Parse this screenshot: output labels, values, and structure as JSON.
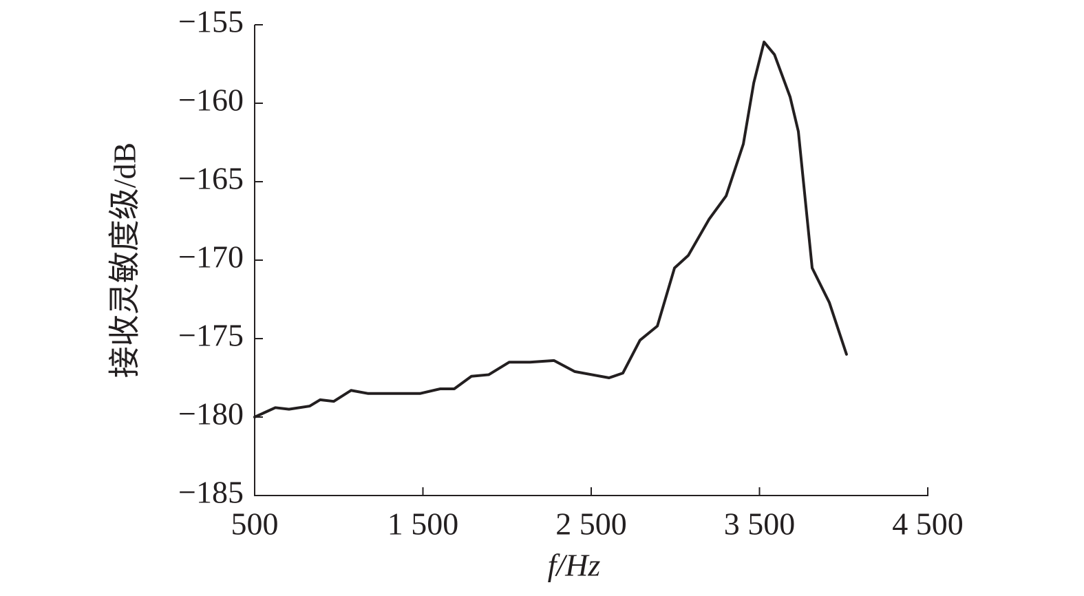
{
  "chart_data": {
    "type": "line",
    "xlabel": "f/Hz",
    "ylabel": "接收灵敏度级/dB",
    "xlim": [
      500,
      4500
    ],
    "ylim": [
      -185,
      -155
    ],
    "xticks": [
      500,
      {
        "value": 1500,
        "label": "1 500"
      },
      {
        "value": 2500,
        "label": "2 500"
      },
      {
        "value": 3500,
        "label": "3 500"
      },
      {
        "value": 4500,
        "label": "4 500"
      }
    ],
    "yticks": [
      {
        "value": -185,
        "label": "−185"
      },
      {
        "value": -180,
        "label": "−180"
      },
      {
        "value": -175,
        "label": "−175"
      },
      {
        "value": -170,
        "label": "−170"
      },
      {
        "value": -165,
        "label": "−165"
      },
      {
        "value": -160,
        "label": "−160"
      },
      {
        "value": -155,
        "label": "−155"
      }
    ],
    "x": [
      500,
      623,
      704,
      827,
      889,
      970,
      1073,
      1175,
      1482,
      1604,
      1686,
      1788,
      1891,
      2013,
      2136,
      2279,
      2402,
      2504,
      2606,
      2688,
      2790,
      2893,
      2995,
      3077,
      3200,
      3302,
      3404,
      3466,
      3527,
      3589,
      3682,
      3731,
      3813,
      3915,
      4017
    ],
    "series": [
      {
        "color": "#231f20",
        "values": [
          -180.0,
          -179.4,
          -179.5,
          -179.3,
          -178.9,
          -179.0,
          -178.3,
          -178.5,
          -178.5,
          -178.2,
          -178.2,
          -177.4,
          -177.3,
          -176.5,
          -176.5,
          -176.4,
          -177.1,
          -177.3,
          -177.5,
          -177.2,
          -175.1,
          -174.2,
          -170.5,
          -169.7,
          -167.4,
          -165.9,
          -162.6,
          -158.7,
          -156.1,
          -156.9,
          -159.6,
          -161.8,
          -170.5,
          -172.7,
          -176.0
        ]
      }
    ]
  }
}
